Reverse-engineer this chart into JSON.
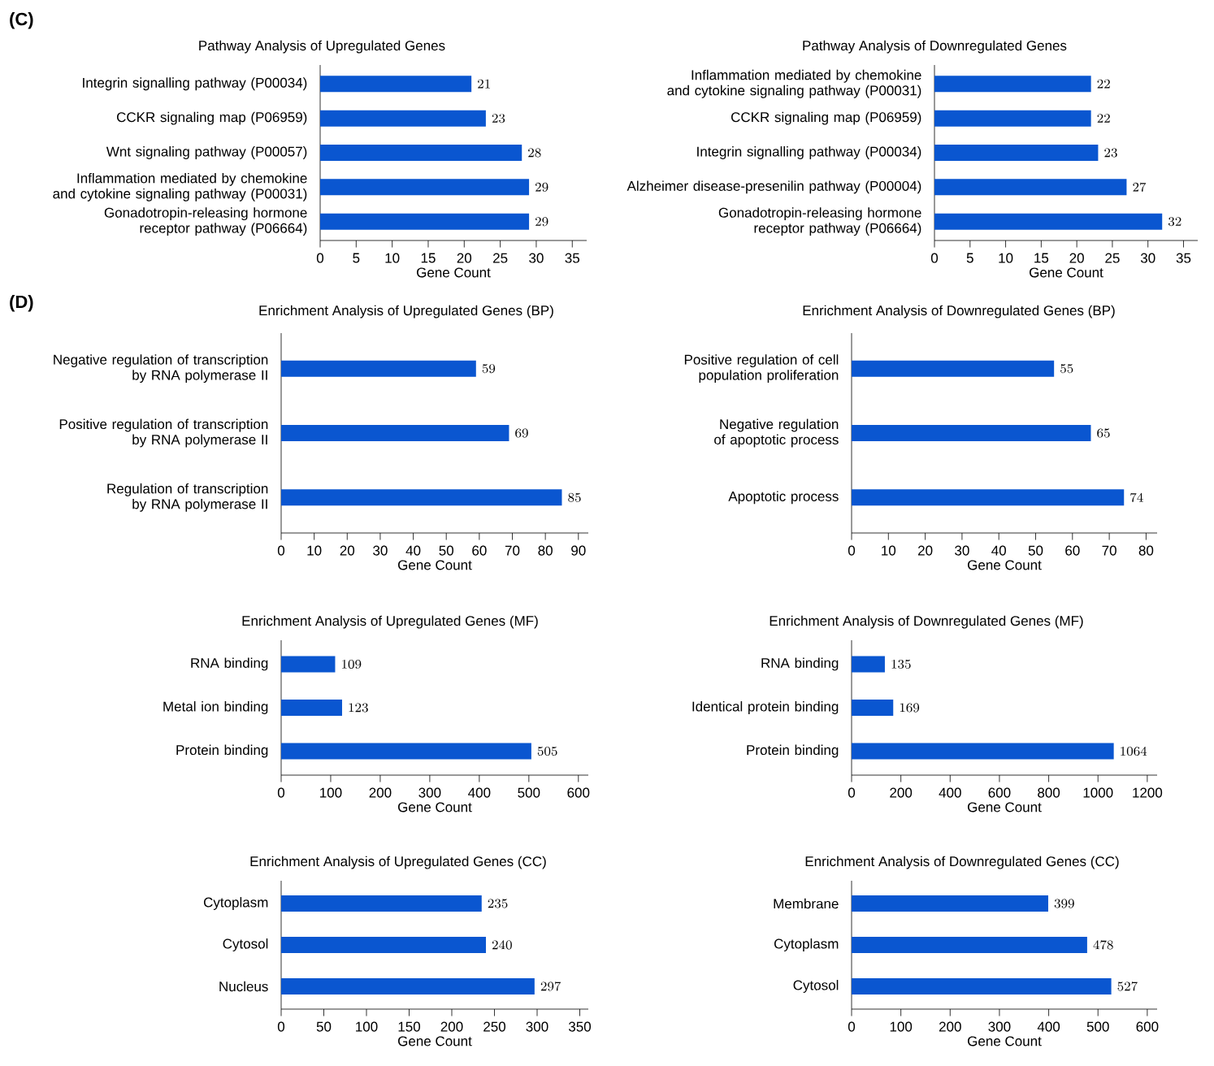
{
  "chart_data": [
    {
      "type": "bar",
      "orientation": "horizontal",
      "title": "Pathway Analysis of Upregulated Genes",
      "xlabel": "Gene Count",
      "annotations": [
        "(C)"
      ],
      "categories": [
        "Integrin signalling pathway (P00034)",
        "CCKR signaling map (P06959)",
        "Wnt signaling pathway (P00057)",
        "Inflammation mediated by chemokine and cytokine signaling pathway (P00031)",
        "Gonadotropin-releasing hormone receptor pathway (P06664)"
      ],
      "values": [
        21,
        23,
        28,
        29,
        29
      ],
      "color": "#0a56d0",
      "xlim": [
        0,
        37
      ],
      "xticks": [
        0,
        5,
        10,
        15,
        20,
        25,
        30,
        35
      ],
      "data_labels": true
    },
    {
      "type": "bar",
      "orientation": "horizontal",
      "title": "Pathway Analysis of Downregulated Genes",
      "xlabel": "Gene Count",
      "categories": [
        "Inflammation mediated by chemokine and cytokine signaling pathway (P00031)",
        "CCKR signaling map (P06959)",
        "Integrin signalling pathway (P00034)",
        "Alzheimer disease-presenilin pathway (P00004)",
        "Gonadotropin-releasing hormone receptor pathway (P06664)"
      ],
      "values": [
        22,
        22,
        23,
        27,
        32
      ],
      "color": "#0a56d0",
      "xlim": [
        0,
        37
      ],
      "xticks": [
        0,
        5,
        10,
        15,
        20,
        25,
        30,
        35
      ],
      "data_labels": true
    },
    {
      "type": "bar",
      "orientation": "horizontal",
      "title": "Enrichment Analysis of Upregulated Genes (BP)",
      "xlabel": "Gene Count",
      "annotations": [
        "(D)"
      ],
      "categories": [
        "Negative regulation of transcription by RNA polymerase II",
        "Positive regulation of transcription by RNA polymerase II",
        "Regulation of transcription by RNA polymerase II"
      ],
      "values": [
        59,
        69,
        85
      ],
      "color": "#0a56d0",
      "xlim": [
        0,
        93
      ],
      "xticks": [
        0,
        10,
        20,
        30,
        40,
        50,
        60,
        70,
        80,
        90
      ],
      "data_labels": true
    },
    {
      "type": "bar",
      "orientation": "horizontal",
      "title": "Enrichment Analysis of Downregulated Genes (BP)",
      "xlabel": "Gene Count",
      "categories": [
        "Positive regulation of cell population proliferation",
        "Negative regulation of apoptotic process",
        "Apoptotic process"
      ],
      "values": [
        55,
        65,
        74
      ],
      "color": "#0a56d0",
      "xlim": [
        0,
        83
      ],
      "xticks": [
        0,
        10,
        20,
        30,
        40,
        50,
        60,
        70,
        80
      ],
      "data_labels": true
    },
    {
      "type": "bar",
      "orientation": "horizontal",
      "title": "Enrichment Analysis of Upregulated Genes (MF)",
      "xlabel": "Gene Count",
      "categories": [
        "RNA binding",
        "Metal ion binding",
        "Protein binding"
      ],
      "values": [
        109,
        123,
        505
      ],
      "color": "#0a56d0",
      "xlim": [
        0,
        620
      ],
      "xticks": [
        0,
        100,
        200,
        300,
        400,
        500,
        600
      ],
      "data_labels": true
    },
    {
      "type": "bar",
      "orientation": "horizontal",
      "title": "Enrichment Analysis of Downregulated Genes (MF)",
      "xlabel": "Gene Count",
      "categories": [
        "RNA binding",
        "Identical protein binding",
        "Protein binding"
      ],
      "values": [
        135,
        169,
        1064
      ],
      "color": "#0a56d0",
      "xlim": [
        0,
        1240
      ],
      "xticks": [
        0,
        200,
        400,
        600,
        800,
        1000,
        1200
      ],
      "data_labels": true
    },
    {
      "type": "bar",
      "orientation": "horizontal",
      "title": "Enrichment Analysis of Upregulated Genes (CC)",
      "xlabel": "Gene Count",
      "categories": [
        "Cytoplasm",
        "Cytosol",
        "Nucleus"
      ],
      "values": [
        235,
        240,
        297
      ],
      "color": "#0a56d0",
      "xlim": [
        0,
        360
      ],
      "xticks": [
        0,
        50,
        100,
        150,
        200,
        250,
        300,
        350
      ],
      "data_labels": true
    },
    {
      "type": "bar",
      "orientation": "horizontal",
      "title": "Enrichment Analysis of Downregulated Genes (CC)",
      "xlabel": "Gene Count",
      "categories": [
        "Membrane",
        "Cytoplasm",
        "Cytosol"
      ],
      "values": [
        399,
        478,
        527
      ],
      "color": "#0a56d0",
      "xlim": [
        0,
        620
      ],
      "xticks": [
        0,
        100,
        200,
        300,
        400,
        500,
        600
      ],
      "data_labels": true
    }
  ]
}
